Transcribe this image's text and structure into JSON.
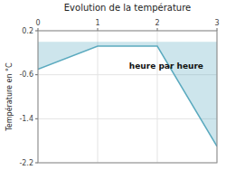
{
  "chart_data": {
    "type": "area",
    "title": "Evolution de la température",
    "y_label": "Température en °C",
    "x": [
      0,
      1,
      2,
      3
    ],
    "values": [
      -0.5,
      -0.08,
      -0.08,
      -1.9
    ],
    "color": "#5baabf",
    "xlim": [
      0,
      3
    ],
    "xticks": [
      0,
      1,
      2,
      3
    ],
    "ylim": [
      -2.2,
      0.2
    ],
    "yticks": [
      0.2,
      -0.6,
      -1.4,
      -2.2
    ],
    "grid": true,
    "annotations": [
      {
        "text": "heure par heure",
        "x": 2.15,
        "y": -0.38
      }
    ]
  }
}
